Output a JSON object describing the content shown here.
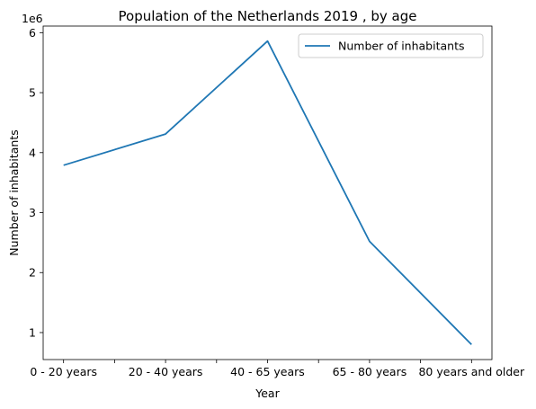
{
  "chart_data": {
    "type": "line",
    "title": "Population of the Netherlands 2019 , by age",
    "xlabel": "Year",
    "ylabel": "Number of inhabitants",
    "y_offset_label": "1e6",
    "categories": [
      "0 - 20 years",
      "20 - 40 years",
      "40 - 65 years",
      "65 - 80 years",
      "80 years and older"
    ],
    "series": [
      {
        "name": "Number of inhabitants",
        "values": [
          3790000,
          4310000,
          5860000,
          2520000,
          800000
        ],
        "color": "#1f77b4"
      }
    ],
    "y_ticks": [
      1,
      2,
      3,
      4,
      5,
      6
    ],
    "y_tick_scale": 1000000,
    "ylim": [
      550000,
      6110000
    ],
    "grid": false,
    "legend_position": "top-right"
  }
}
